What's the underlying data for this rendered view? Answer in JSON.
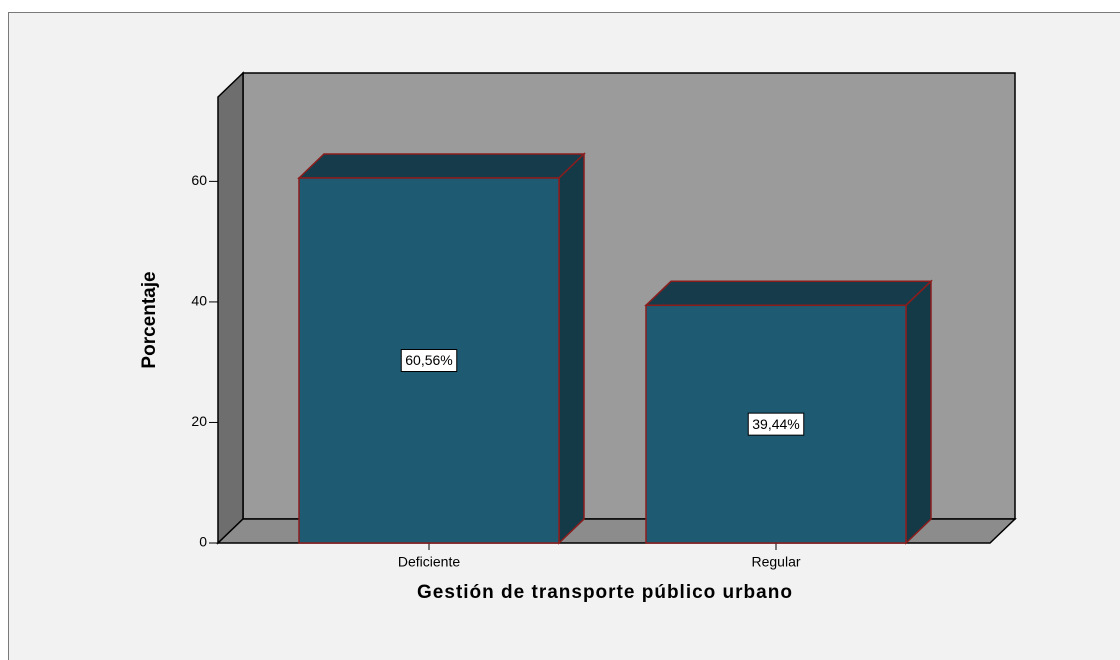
{
  "chart_data": {
    "type": "bar3d",
    "x_label": "Gestión de transporte público urbano",
    "y_label": "Porcentaje",
    "categories": [
      "Deficiente",
      "Regular"
    ],
    "values": [
      60.56,
      39.44
    ],
    "value_labels": [
      "60,56%",
      "39,44%"
    ],
    "color": "#1e5a72",
    "ylim": [
      0,
      74
    ],
    "yticks": [
      0,
      20,
      40,
      60
    ]
  }
}
